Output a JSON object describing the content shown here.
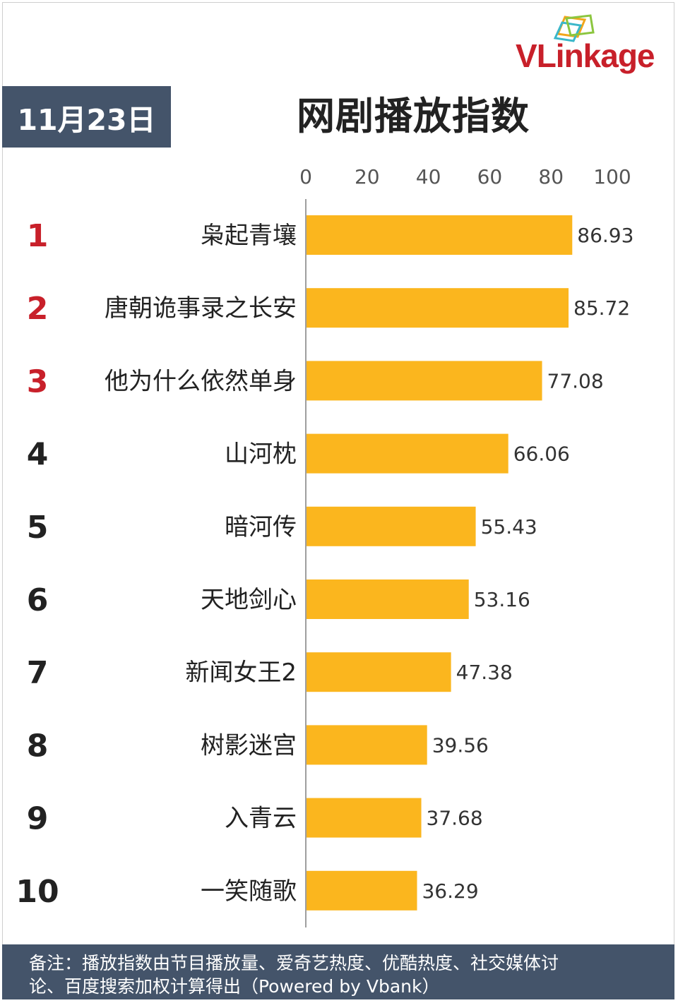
{
  "logo": {
    "text_v": "V",
    "text_rest": "Linkage"
  },
  "date": "11月23日",
  "title": "网剧播放指数",
  "colors": {
    "bar": "#fbb61e",
    "axis": "#9e9e9e",
    "rank_top": "#c8202a",
    "rank_other": "#222222",
    "panel": "#44546a"
  },
  "chart_data": {
    "type": "bar",
    "orientation": "horizontal",
    "title": "网剧播放指数",
    "xlim": [
      0,
      100
    ],
    "ticks": [
      "0",
      "20",
      "40",
      "60",
      "80",
      "100"
    ],
    "ranks": [
      "1",
      "2",
      "3",
      "4",
      "5",
      "6",
      "7",
      "8",
      "9",
      "10"
    ],
    "categories": [
      "枭起青壤",
      "唐朝诡事录之长安",
      "他为什么依然单身",
      "山河枕",
      "暗河传",
      "天地剑心",
      "新闻女王2",
      "树影迷宫",
      "入青云",
      "一笑随歌"
    ],
    "values": [
      86.93,
      85.72,
      77.08,
      66.06,
      55.43,
      53.16,
      47.38,
      39.56,
      37.68,
      36.29
    ],
    "value_labels": [
      "86.93",
      "85.72",
      "77.08",
      "66.06",
      "55.43",
      "53.16",
      "47.38",
      "39.56",
      "37.68",
      "36.29"
    ],
    "grid": false
  },
  "footer": {
    "line1": "备注：播放指数由节目播放量、爱奇艺热度、优酷热度、社交媒体讨",
    "line2": "论、百度搜索加权计算得出（Powered by Vbank）"
  }
}
